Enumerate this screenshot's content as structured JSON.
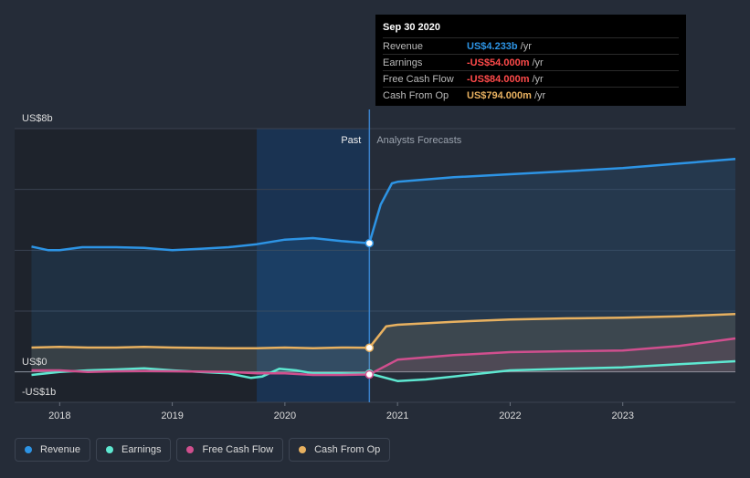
{
  "chart_data": {
    "type": "line",
    "y_labels": {
      "top": "US$8b",
      "zero": "US$0",
      "bottom": "-US$1b"
    },
    "ylim": [
      -1,
      8
    ],
    "xlim": [
      2017.6,
      2024.0
    ],
    "x_ticks": [
      2018,
      2019,
      2020,
      2021,
      2022,
      2023
    ],
    "past_label": "Past",
    "forecast_label": "Analysts Forecasts",
    "divider_x": 2020.75,
    "highlight_range": [
      2019.75,
      2020.75
    ],
    "series": [
      {
        "name": "Revenue",
        "color": "#2d94e5",
        "fill": true,
        "points": [
          [
            2017.75,
            4.12
          ],
          [
            2017.9,
            4.0
          ],
          [
            2018.0,
            4.0
          ],
          [
            2018.2,
            4.1
          ],
          [
            2018.5,
            4.1
          ],
          [
            2018.75,
            4.08
          ],
          [
            2019.0,
            4.0
          ],
          [
            2019.25,
            4.05
          ],
          [
            2019.5,
            4.1
          ],
          [
            2019.75,
            4.2
          ],
          [
            2020.0,
            4.35
          ],
          [
            2020.25,
            4.4
          ],
          [
            2020.5,
            4.3
          ],
          [
            2020.75,
            4.233
          ],
          [
            2020.85,
            5.5
          ],
          [
            2020.95,
            6.2
          ],
          [
            2021.0,
            6.25
          ],
          [
            2021.5,
            6.4
          ],
          [
            2022.0,
            6.5
          ],
          [
            2022.5,
            6.6
          ],
          [
            2023.0,
            6.7
          ],
          [
            2023.5,
            6.85
          ],
          [
            2024.0,
            7.0
          ]
        ]
      },
      {
        "name": "Earnings",
        "color": "#5ee8d1",
        "fill": false,
        "points": [
          [
            2017.75,
            -0.1
          ],
          [
            2018.0,
            0.0
          ],
          [
            2018.25,
            0.05
          ],
          [
            2018.5,
            0.08
          ],
          [
            2018.75,
            0.12
          ],
          [
            2019.0,
            0.05
          ],
          [
            2019.25,
            0.0
          ],
          [
            2019.5,
            -0.05
          ],
          [
            2019.7,
            -0.2
          ],
          [
            2019.8,
            -0.15
          ],
          [
            2019.95,
            0.1
          ],
          [
            2020.1,
            0.05
          ],
          [
            2020.25,
            -0.05
          ],
          [
            2020.5,
            -0.05
          ],
          [
            2020.75,
            -0.054
          ],
          [
            2021.0,
            -0.3
          ],
          [
            2021.25,
            -0.25
          ],
          [
            2021.5,
            -0.15
          ],
          [
            2022.0,
            0.05
          ],
          [
            2022.5,
            0.1
          ],
          [
            2023.0,
            0.15
          ],
          [
            2023.5,
            0.25
          ],
          [
            2024.0,
            0.35
          ]
        ]
      },
      {
        "name": "Free Cash Flow",
        "color": "#d04f8e",
        "fill": true,
        "points": [
          [
            2017.75,
            0.05
          ],
          [
            2018.0,
            0.05
          ],
          [
            2018.25,
            0.0
          ],
          [
            2018.5,
            0.02
          ],
          [
            2018.75,
            0.03
          ],
          [
            2019.0,
            0.02
          ],
          [
            2019.5,
            0.0
          ],
          [
            2019.75,
            -0.05
          ],
          [
            2020.0,
            -0.05
          ],
          [
            2020.25,
            -0.1
          ],
          [
            2020.5,
            -0.1
          ],
          [
            2020.75,
            -0.084
          ],
          [
            2021.0,
            0.4
          ],
          [
            2021.5,
            0.55
          ],
          [
            2022.0,
            0.65
          ],
          [
            2022.5,
            0.68
          ],
          [
            2023.0,
            0.7
          ],
          [
            2023.5,
            0.85
          ],
          [
            2024.0,
            1.1
          ]
        ]
      },
      {
        "name": "Cash From Op",
        "color": "#e8b160",
        "fill": true,
        "points": [
          [
            2017.75,
            0.8
          ],
          [
            2018.0,
            0.82
          ],
          [
            2018.25,
            0.8
          ],
          [
            2018.5,
            0.8
          ],
          [
            2018.75,
            0.82
          ],
          [
            2019.0,
            0.8
          ],
          [
            2019.5,
            0.78
          ],
          [
            2019.75,
            0.78
          ],
          [
            2020.0,
            0.8
          ],
          [
            2020.25,
            0.78
          ],
          [
            2020.5,
            0.8
          ],
          [
            2020.75,
            0.794
          ],
          [
            2020.9,
            1.5
          ],
          [
            2021.0,
            1.55
          ],
          [
            2021.5,
            1.65
          ],
          [
            2022.0,
            1.72
          ],
          [
            2022.5,
            1.76
          ],
          [
            2023.0,
            1.78
          ],
          [
            2023.5,
            1.83
          ],
          [
            2024.0,
            1.9
          ]
        ]
      }
    ]
  },
  "tooltip": {
    "date": "Sep 30 2020",
    "rows": [
      {
        "label": "Revenue",
        "value": "US$4.233b",
        "unit": "/yr",
        "color": "#2d94e5"
      },
      {
        "label": "Earnings",
        "value": "-US$54.000m",
        "unit": "/yr",
        "color": "#ff4a4a"
      },
      {
        "label": "Free Cash Flow",
        "value": "-US$84.000m",
        "unit": "/yr",
        "color": "#ff4a4a"
      },
      {
        "label": "Cash From Op",
        "value": "US$794.000m",
        "unit": "/yr",
        "color": "#e8b160"
      }
    ]
  },
  "legend": [
    {
      "label": "Revenue",
      "color": "#2d94e5"
    },
    {
      "label": "Earnings",
      "color": "#5ee8d1"
    },
    {
      "label": "Free Cash Flow",
      "color": "#d04f8e"
    },
    {
      "label": "Cash From Op",
      "color": "#e8b160"
    }
  ]
}
